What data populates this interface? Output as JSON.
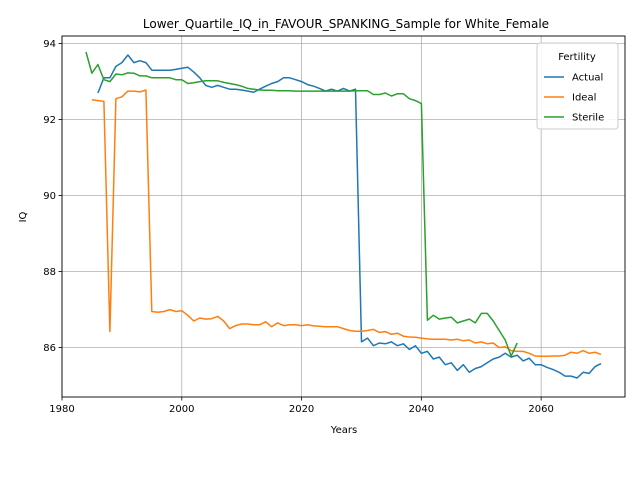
{
  "chart_data": {
    "type": "line",
    "title": "Lower_Quartile_IQ_in_FAVOUR_SPANKING_Sample for White_Female",
    "xlabel": "Years",
    "ylabel": "IQ",
    "xlim": [
      1980,
      2074
    ],
    "ylim": [
      84.7,
      94.2
    ],
    "xticks": [
      1980,
      2000,
      2020,
      2040,
      2060
    ],
    "yticks": [
      86,
      88,
      90,
      92,
      94
    ],
    "grid": true,
    "legend": {
      "title": "Fertility",
      "placement": "top-right"
    },
    "series": [
      {
        "name": "Actual",
        "color": "#1f77b4",
        "x": [
          1986,
          1987,
          1988,
          1989,
          1990,
          1991,
          1992,
          1993,
          1994,
          1995,
          1996,
          1997,
          1998,
          1999,
          2000,
          2001,
          2002,
          2003,
          2004,
          2005,
          2006,
          2007,
          2008,
          2009,
          2010,
          2011,
          2012,
          2013,
          2014,
          2015,
          2016,
          2017,
          2018,
          2019,
          2020,
          2021,
          2022,
          2023,
          2024,
          2025,
          2026,
          2027,
          2028,
          2029,
          2030,
          2031,
          2032,
          2033,
          2034,
          2035,
          2036,
          2037,
          2038,
          2039,
          2040,
          2041,
          2042,
          2043,
          2044,
          2045,
          2046,
          2047,
          2048,
          2049,
          2050,
          2051,
          2052,
          2053,
          2054,
          2055,
          2056,
          2057,
          2058,
          2059,
          2060,
          2061,
          2062,
          2063,
          2064,
          2065,
          2066,
          2067,
          2068,
          2069,
          2070
        ],
        "y": [
          92.7,
          93.1,
          93.1,
          93.4,
          93.5,
          93.7,
          93.5,
          93.55,
          93.5,
          93.3,
          93.3,
          93.3,
          93.3,
          93.32,
          93.35,
          93.38,
          93.25,
          93.1,
          92.9,
          92.85,
          92.9,
          92.85,
          92.8,
          92.8,
          92.78,
          92.75,
          92.72,
          92.8,
          92.88,
          92.95,
          93.0,
          93.1,
          93.1,
          93.05,
          93.0,
          92.92,
          92.88,
          92.82,
          92.75,
          92.8,
          92.75,
          92.82,
          92.75,
          92.8,
          86.15,
          86.25,
          86.05,
          86.12,
          86.1,
          86.15,
          86.05,
          86.1,
          85.95,
          86.05,
          85.85,
          85.9,
          85.7,
          85.75,
          85.55,
          85.6,
          85.4,
          85.55,
          85.35,
          85.45,
          85.5,
          85.6,
          85.7,
          85.75,
          85.85,
          85.75,
          85.8,
          85.65,
          85.72,
          85.55,
          85.55,
          85.48,
          85.42,
          85.35,
          85.25,
          85.25,
          85.2,
          85.35,
          85.32,
          85.5,
          85.58
        ]
      },
      {
        "name": "Ideal",
        "color": "#ff7f0e",
        "x": [
          1985,
          1986,
          1987,
          1988,
          1989,
          1990,
          1991,
          1992,
          1993,
          1994,
          1995,
          1996,
          1997,
          1998,
          1999,
          2000,
          2001,
          2002,
          2003,
          2004,
          2005,
          2006,
          2007,
          2008,
          2009,
          2010,
          2011,
          2012,
          2013,
          2014,
          2015,
          2016,
          2017,
          2018,
          2019,
          2020,
          2021,
          2022,
          2023,
          2024,
          2025,
          2026,
          2027,
          2028,
          2029,
          2030,
          2031,
          2032,
          2033,
          2034,
          2035,
          2036,
          2037,
          2038,
          2039,
          2040,
          2041,
          2042,
          2043,
          2044,
          2045,
          2046,
          2047,
          2048,
          2049,
          2050,
          2051,
          2052,
          2053,
          2054,
          2055,
          2056,
          2057,
          2058,
          2059,
          2060,
          2061,
          2062,
          2063,
          2064,
          2065,
          2066,
          2067,
          2068,
          2069,
          2070
        ],
        "y": [
          92.52,
          92.5,
          92.48,
          86.42,
          92.55,
          92.6,
          92.75,
          92.75,
          92.73,
          92.78,
          86.95,
          86.93,
          86.95,
          87.0,
          86.95,
          86.97,
          86.85,
          86.7,
          86.78,
          86.75,
          86.76,
          86.82,
          86.7,
          86.5,
          86.58,
          86.62,
          86.62,
          86.6,
          86.6,
          86.68,
          86.55,
          86.65,
          86.58,
          86.6,
          86.6,
          86.58,
          86.6,
          86.57,
          86.56,
          86.55,
          86.55,
          86.55,
          86.5,
          86.45,
          86.43,
          86.43,
          86.45,
          86.48,
          86.4,
          86.42,
          86.35,
          86.38,
          86.3,
          86.28,
          86.27,
          86.25,
          86.23,
          86.22,
          86.22,
          86.22,
          86.2,
          86.22,
          86.18,
          86.2,
          86.12,
          86.15,
          86.1,
          86.12,
          86.0,
          86.02,
          85.92,
          85.9,
          85.9,
          85.85,
          85.78,
          85.77,
          85.77,
          85.78,
          85.78,
          85.8,
          85.88,
          85.85,
          85.92,
          85.85,
          85.88,
          85.82
        ]
      },
      {
        "name": "Sterile",
        "color": "#2ca02c",
        "x": [
          1984,
          1985,
          1986,
          1987,
          1988,
          1989,
          1990,
          1991,
          1992,
          1993,
          1994,
          1995,
          1996,
          1997,
          1998,
          1999,
          2000,
          2001,
          2002,
          2003,
          2004,
          2005,
          2006,
          2007,
          2008,
          2009,
          2010,
          2011,
          2012,
          2013,
          2014,
          2015,
          2016,
          2017,
          2018,
          2019,
          2020,
          2021,
          2022,
          2023,
          2024,
          2025,
          2026,
          2027,
          2028,
          2029,
          2030,
          2031,
          2032,
          2033,
          2034,
          2035,
          2036,
          2037,
          2038,
          2039,
          2040,
          2041,
          2042,
          2043,
          2044,
          2045,
          2046,
          2047,
          2048,
          2049,
          2050,
          2051,
          2052,
          2053,
          2054,
          2055,
          2056
        ],
        "y": [
          93.78,
          93.22,
          93.45,
          93.05,
          93.0,
          93.2,
          93.18,
          93.23,
          93.22,
          93.15,
          93.15,
          93.1,
          93.1,
          93.1,
          93.1,
          93.05,
          93.05,
          92.95,
          92.97,
          93.0,
          93.02,
          93.02,
          93.02,
          92.98,
          92.95,
          92.92,
          92.88,
          92.82,
          92.8,
          92.78,
          92.77,
          92.77,
          92.76,
          92.76,
          92.76,
          92.75,
          92.75,
          92.75,
          92.75,
          92.75,
          92.75,
          92.75,
          92.75,
          92.75,
          92.75,
          92.76,
          92.76,
          92.76,
          92.66,
          92.66,
          92.7,
          92.62,
          92.68,
          92.68,
          92.55,
          92.5,
          92.42,
          86.72,
          86.85,
          86.75,
          86.78,
          86.8,
          86.65,
          86.7,
          86.75,
          86.65,
          86.9,
          86.9,
          86.7,
          86.45,
          86.2,
          85.78,
          86.12
        ]
      }
    ]
  }
}
